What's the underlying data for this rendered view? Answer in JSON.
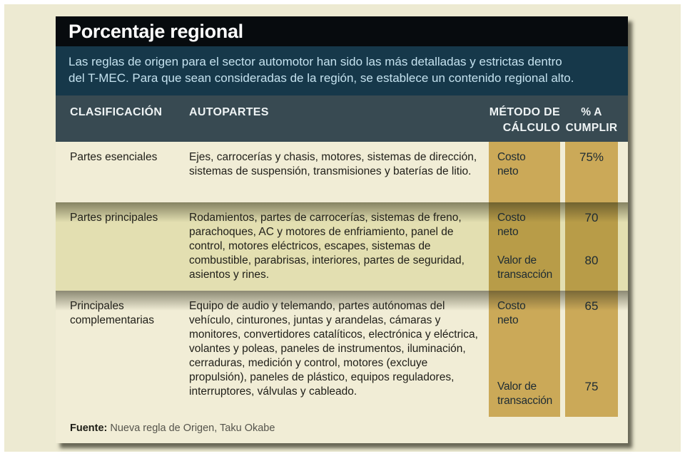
{
  "title": "Porcentaje regional",
  "intro": {
    "line1": "Las reglas de origen para el sector automotor han sido las más detalladas y estrictas dentro",
    "line2": "del T-MEC. Para que sean consideradas de la región, se establece un contenido regional alto."
  },
  "header": {
    "clasificacion": "CLASIFICACIÓN",
    "autopartes": "AUTOPARTES",
    "metodo_l1": "MÉTODO DE",
    "metodo_l2": "CÁLCULO",
    "cumplir_l1": "% A",
    "cumplir_l2": "CUMPLIR"
  },
  "rows": [
    {
      "clasificacion": "Partes esenciales",
      "autopartes": "Ejes, carrocerías y chasis, motores, sistemas de dirección, sistemas de suspensión, transmisiones y baterías de litio.",
      "metodos": [
        {
          "metodo": "Costo neto",
          "porcentaje": "75%"
        }
      ]
    },
    {
      "clasificacion": "Partes principales",
      "autopartes": "Rodamientos, partes de carrocerías, sistemas de freno, parachoques, AC y motores de enfriamiento, panel de control, motores eléctricos, escapes, sistemas de combustible, parabrisas, interiores, partes de seguridad, asientos y rines.",
      "metodos": [
        {
          "metodo": "Costo neto",
          "porcentaje": "70"
        },
        {
          "metodo": "Valor de transacción",
          "porcentaje": "80"
        }
      ]
    },
    {
      "clasificacion": "Principales complementarias",
      "autopartes": "Equipo de audio y telemando, partes autónomas del vehículo, cinturones, juntas y arandelas, cámaras y monitores, convertidores catalíticos, electrónica y eléctrica, volantes y poleas, paneles de instrumentos, iluminación, cerraduras, medición y control, motores (excluye propulsión), paneles de plástico, equipos reguladores, interruptores, válvulas y cableado.",
      "metodos": [
        {
          "metodo": "Costo neto",
          "porcentaje": "65"
        },
        {
          "metodo": "Valor de transacción",
          "porcentaje": "75"
        }
      ]
    }
  ],
  "source": {
    "label": "Fuente:",
    "text": "Nueva regla de Origen, Taku Okabe"
  },
  "colors": {
    "title_bg": "#070b0e",
    "intro_bg": "#16384a",
    "header_bg": "#384a52",
    "row_cream": "#f1edd6",
    "row_olive": "#e3dfb1",
    "gold": "#cba958",
    "gold_dark": "#b89c48",
    "page_bg": "#edead2"
  },
  "chart_data": {
    "type": "table",
    "title": "Porcentaje regional",
    "columns": [
      "CLASIFICACIÓN",
      "AUTOPARTES",
      "MÉTODO DE CÁLCULO",
      "% A CUMPLIR"
    ],
    "rows": [
      [
        "Partes esenciales",
        "Ejes, carrocerías y chasis, motores, sistemas de dirección, sistemas de suspensión, transmisiones y baterías de litio.",
        "Costo neto",
        "75%"
      ],
      [
        "Partes principales",
        "Rodamientos, partes de carrocerías, sistemas de freno, parachoques, AC y motores de enfriamiento, panel de control, motores eléctricos, escapes, sistemas de combustible, parabrisas, interiores, partes de seguridad, asientos y rines.",
        "Costo neto",
        "70"
      ],
      [
        "Partes principales",
        "",
        "Valor de transacción",
        "80"
      ],
      [
        "Principales complementarias",
        "Equipo de audio y telemando, partes autónomas del vehículo, cinturones, juntas y arandelas, cámaras y monitores, convertidores catalíticos, electrónica y eléctrica, volantes y poleas, paneles de instrumentos, iluminación, cerraduras, medición y control, motores (excluye propulsión), paneles de plástico, equipos reguladores, interruptores, válvulas y cableado.",
        "Costo neto",
        "65"
      ],
      [
        "Principales complementarias",
        "",
        "Valor de transacción",
        "75"
      ]
    ]
  }
}
